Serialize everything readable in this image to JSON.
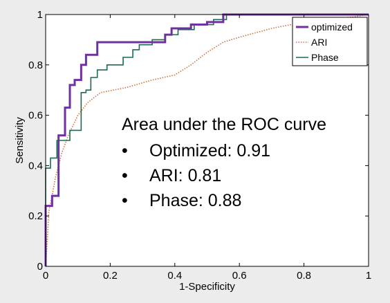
{
  "chart_data": {
    "type": "line",
    "xlabel": "1-Specificity",
    "ylabel": "Sensitivity",
    "xlim": [
      0,
      1
    ],
    "ylim": [
      0,
      1
    ],
    "xticks": [
      "0",
      "0.2",
      "0.4",
      "0.6",
      "0.8",
      "1"
    ],
    "yticks": [
      "0",
      "0.2",
      "0.4",
      "0.6",
      "0.8",
      "1"
    ],
    "legend_position": "top-right",
    "series": [
      {
        "name": "optimized",
        "color": "#7030a0",
        "style": "solid",
        "points": [
          [
            0,
            0
          ],
          [
            0,
            0.24
          ],
          [
            0.02,
            0.24
          ],
          [
            0.02,
            0.28
          ],
          [
            0.04,
            0.28
          ],
          [
            0.04,
            0.52
          ],
          [
            0.06,
            0.52
          ],
          [
            0.06,
            0.63
          ],
          [
            0.075,
            0.63
          ],
          [
            0.075,
            0.72
          ],
          [
            0.09,
            0.72
          ],
          [
            0.09,
            0.74
          ],
          [
            0.11,
            0.74
          ],
          [
            0.11,
            0.8
          ],
          [
            0.125,
            0.8
          ],
          [
            0.125,
            0.84
          ],
          [
            0.16,
            0.84
          ],
          [
            0.16,
            0.89
          ],
          [
            0.37,
            0.89
          ],
          [
            0.37,
            0.92
          ],
          [
            0.39,
            0.92
          ],
          [
            0.39,
            0.945
          ],
          [
            0.45,
            0.945
          ],
          [
            0.45,
            0.96
          ],
          [
            0.5,
            0.96
          ],
          [
            0.5,
            0.97
          ],
          [
            0.55,
            0.97
          ],
          [
            0.55,
            1.0
          ],
          [
            1,
            1
          ]
        ]
      },
      {
        "name": "ARI",
        "color": "#d0703a",
        "style": "dotted",
        "points": [
          [
            0,
            0
          ],
          [
            0.005,
            0.1
          ],
          [
            0.01,
            0.22
          ],
          [
            0.02,
            0.28
          ],
          [
            0.03,
            0.35
          ],
          [
            0.05,
            0.45
          ],
          [
            0.07,
            0.52
          ],
          [
            0.1,
            0.6
          ],
          [
            0.13,
            0.65
          ],
          [
            0.17,
            0.69
          ],
          [
            0.25,
            0.71
          ],
          [
            0.33,
            0.74
          ],
          [
            0.4,
            0.76
          ],
          [
            0.45,
            0.8
          ],
          [
            0.5,
            0.85
          ],
          [
            0.55,
            0.89
          ],
          [
            0.6,
            0.91
          ],
          [
            0.7,
            0.945
          ],
          [
            0.8,
            0.97
          ],
          [
            0.9,
            0.985
          ],
          [
            0.95,
            0.99
          ],
          [
            1,
            1
          ]
        ]
      },
      {
        "name": "Phase",
        "color": "#1a6b4f",
        "style": "solid",
        "points": [
          [
            0,
            0
          ],
          [
            0,
            0.39
          ],
          [
            0.015,
            0.39
          ],
          [
            0.015,
            0.43
          ],
          [
            0.035,
            0.43
          ],
          [
            0.035,
            0.5
          ],
          [
            0.075,
            0.5
          ],
          [
            0.075,
            0.54
          ],
          [
            0.11,
            0.54
          ],
          [
            0.11,
            0.69
          ],
          [
            0.125,
            0.69
          ],
          [
            0.125,
            0.7
          ],
          [
            0.14,
            0.7
          ],
          [
            0.14,
            0.75
          ],
          [
            0.16,
            0.75
          ],
          [
            0.16,
            0.78
          ],
          [
            0.19,
            0.78
          ],
          [
            0.19,
            0.8
          ],
          [
            0.24,
            0.8
          ],
          [
            0.24,
            0.83
          ],
          [
            0.27,
            0.83
          ],
          [
            0.27,
            0.86
          ],
          [
            0.29,
            0.86
          ],
          [
            0.29,
            0.88
          ],
          [
            0.33,
            0.88
          ],
          [
            0.33,
            0.9
          ],
          [
            0.37,
            0.9
          ],
          [
            0.37,
            0.92
          ],
          [
            0.41,
            0.92
          ],
          [
            0.41,
            0.94
          ],
          [
            0.46,
            0.94
          ],
          [
            0.46,
            0.96
          ],
          [
            0.52,
            0.96
          ],
          [
            0.52,
            0.98
          ],
          [
            0.56,
            0.98
          ],
          [
            0.56,
            1.0
          ],
          [
            1,
            1
          ]
        ]
      }
    ],
    "annotation": {
      "title": "Area under the ROC curve",
      "items": [
        "Optimized: 0.91",
        "ARI: 0.81",
        "Phase: 0.88"
      ],
      "bullet": "•"
    }
  }
}
